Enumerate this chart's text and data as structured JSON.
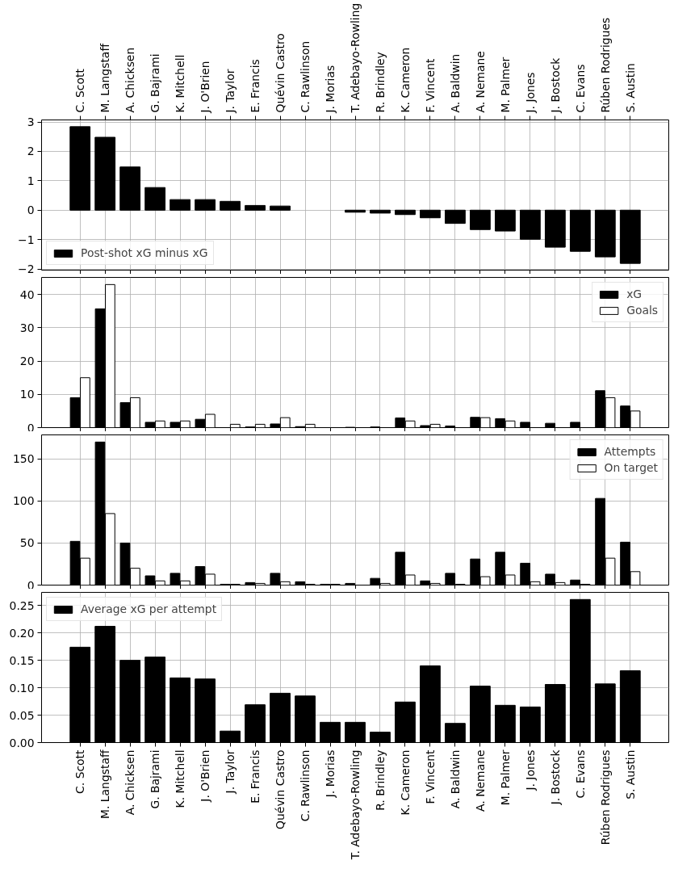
{
  "chart_data": [
    {
      "type": "bar",
      "categories": [
        "C. Scott",
        "M. Langstaff",
        "A. Chicksen",
        "G. Bajrami",
        "K. Mitchell",
        "J. O'Brien",
        "J. Taylor",
        "E. Francis",
        "Quévin Castro",
        "C. Rawlinson",
        "J. Morias",
        "T. Adebayo-Rowling",
        "R. Brindley",
        "K. Cameron",
        "F. Vincent",
        "A. Baldwin",
        "A. Nemane",
        "M. Palmer",
        "J. Jones",
        "J. Bostock",
        "C. Evans",
        "Rúben Rodrigues",
        "S. Austin"
      ],
      "series": [
        {
          "name": "Post-shot xG minus xG",
          "color": "#000000",
          "values": [
            2.84,
            2.48,
            1.47,
            0.77,
            0.36,
            0.36,
            0.3,
            0.16,
            0.14,
            null,
            null,
            -0.07,
            -0.1,
            -0.15,
            -0.26,
            -0.45,
            -0.66,
            -0.71,
            -0.99,
            -1.26,
            -1.4,
            -1.59,
            -1.81
          ]
        }
      ],
      "ylim": [
        -2.04,
        3.07
      ],
      "yticks": [
        {
          "value": -2,
          "label": "−2"
        },
        {
          "value": -1,
          "label": "−1"
        },
        0,
        1,
        2,
        3
      ],
      "grid": true,
      "legend": "bottom left"
    },
    {
      "type": "bar",
      "categories": [
        null,
        null,
        null,
        null,
        null,
        null,
        null,
        null,
        null,
        null,
        null,
        null,
        null,
        null,
        null,
        null,
        null,
        null,
        null,
        null,
        null,
        null,
        null
      ],
      "series": [
        {
          "name": "xG",
          "color": "#000000",
          "values": [
            9.0,
            35.7,
            7.5,
            1.6,
            1.6,
            2.5,
            null,
            0.2,
            1.1,
            0.3,
            null,
            0.1,
            0.2,
            2.9,
            0.6,
            0.5,
            3.1,
            2.7,
            1.6,
            1.3,
            1.6,
            11.1,
            6.5
          ]
        },
        {
          "name": "Goals",
          "color": "#ffffff",
          "values": [
            15,
            43,
            9,
            2,
            2,
            4,
            1,
            1,
            3,
            1,
            null,
            null,
            null,
            2,
            1,
            null,
            3,
            2,
            null,
            null,
            null,
            9,
            5
          ]
        }
      ],
      "ylim": [
        0,
        45.15
      ],
      "yticks": [
        0,
        10,
        20,
        30,
        40
      ],
      "grid": true,
      "legend": "top right"
    },
    {
      "type": "bar",
      "categories": [
        null,
        null,
        null,
        null,
        null,
        null,
        null,
        null,
        null,
        null,
        null,
        null,
        null,
        null,
        null,
        null,
        null,
        null,
        null,
        null,
        null,
        null,
        null
      ],
      "series": [
        {
          "name": "Attempts",
          "color": "#000000",
          "values": [
            52,
            170,
            50,
            11,
            14,
            22,
            1,
            3,
            14,
            4,
            1,
            2,
            8,
            39,
            5,
            14,
            31,
            39,
            26,
            13,
            6,
            103,
            51
          ]
        },
        {
          "name": "On target",
          "color": "#ffffff",
          "values": [
            32,
            85,
            20,
            5,
            5,
            13,
            1,
            2,
            4,
            1,
            1,
            null,
            2,
            12,
            2,
            1,
            10,
            12,
            4,
            3,
            1,
            32,
            16
          ]
        }
      ],
      "ylim": [
        0,
        178.5
      ],
      "yticks": [
        0,
        50,
        100,
        150
      ],
      "grid": true,
      "legend": "top right"
    },
    {
      "type": "bar",
      "categories": [
        "C. Scott",
        "M. Langstaff",
        "A. Chicksen",
        "G. Bajrami",
        "K. Mitchell",
        "J. O'Brien",
        "J. Taylor",
        "E. Francis",
        "Quévin Castro",
        "C. Rawlinson",
        "J. Morias",
        "T. Adebayo-Rowling",
        "R. Brindley",
        "K. Cameron",
        "F. Vincent",
        "A. Baldwin",
        "A. Nemane",
        "M. Palmer",
        "J. Jones",
        "J. Bostock",
        "C. Evans",
        "Rúben Rodrigues",
        "S. Austin"
      ],
      "series": [
        {
          "name": "Average xG per attempt",
          "color": "#000000",
          "values": [
            0.174,
            0.212,
            0.15,
            0.156,
            0.118,
            0.116,
            0.021,
            0.069,
            0.09,
            0.085,
            0.037,
            0.037,
            0.019,
            0.074,
            0.14,
            0.035,
            0.103,
            0.068,
            0.065,
            0.106,
            0.261,
            0.107,
            0.131
          ]
        }
      ],
      "ylim": [
        0,
        0.274
      ],
      "yticks": [
        {
          "value": 0,
          "label": "0.00"
        },
        {
          "value": 0.05,
          "label": "0.05"
        },
        {
          "value": 0.1,
          "label": "0.10"
        },
        {
          "value": 0.15,
          "label": "0.15"
        },
        {
          "value": 0.2,
          "label": "0.20"
        },
        {
          "value": 0.25,
          "label": "0.25"
        }
      ],
      "grid": true,
      "legend": "top left"
    }
  ]
}
